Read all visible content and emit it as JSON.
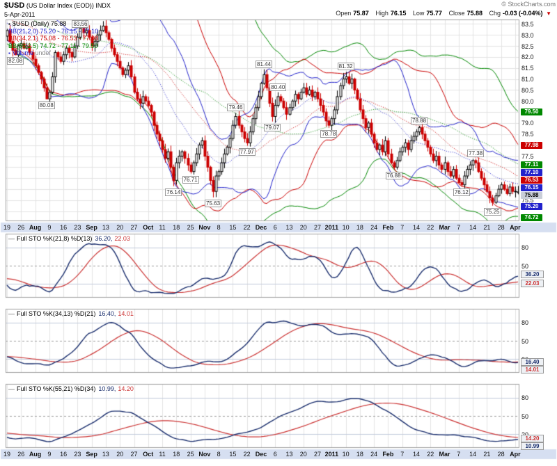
{
  "header": {
    "symbol": "$USD",
    "title_rest": " (US Dollar Index (EOD)) INDX",
    "copyright": "© StockCharts.com",
    "date": "5-Apr-2011",
    "quote": [
      {
        "label": "Open",
        "value": "75.87"
      },
      {
        "label": "High",
        "value": "76.15"
      },
      {
        "label": "Low",
        "value": "75.77"
      },
      {
        "label": "Close",
        "value": "75.88"
      },
      {
        "label": "Chg",
        "value": "-0.03 (-0.04%)"
      }
    ],
    "direction_arrow": "▼"
  },
  "price_panel": {
    "legend": [
      {
        "icon": "▪",
        "icon_name": "candlestick-icon",
        "icon_color": "#000000",
        "text": "$USD (Daily) 75.88",
        "color": "#000000"
      },
      {
        "text": "BB(21,2.0) 75.20 - 76.15 - 77.10",
        "color": "#2222cc"
      },
      {
        "text": "BB(34,2.1) 75.08 - 76.53 - 77.98",
        "color": "#cc0000"
      },
      {
        "text": "BB(55,2.5) 74.72 - 77.11 - 79.50",
        "color": "#008800"
      },
      {
        "icon": "▪",
        "icon_name": "volume-icon",
        "icon_color": "#2222cc",
        "text": "Volume",
        "color": "#2222cc",
        "text2": " undef",
        "color2": "#888888"
      }
    ],
    "y_ticks": [
      "83.5",
      "83.0",
      "82.5",
      "82.0",
      "81.5",
      "81.0",
      "80.5",
      "80.0",
      "79.0",
      "78.5",
      "77.5",
      "75.5"
    ],
    "value_boxes": [
      {
        "text": "79.50",
        "v": 79.5,
        "color": "#008800"
      },
      {
        "text": "77.98",
        "v": 77.98,
        "color": "#cc0000"
      },
      {
        "text": "77.11",
        "v": 77.11,
        "color": "#008800"
      },
      {
        "text": "77.10",
        "v": 77.1,
        "color": "#2222cc"
      },
      {
        "text": "76.53",
        "v": 76.53,
        "color": "#cc0000"
      },
      {
        "text": "76.15",
        "v": 76.15,
        "color": "#2222cc"
      },
      {
        "text": "75.88",
        "v": 75.88,
        "color": "last"
      },
      {
        "text": "75.20",
        "v": 75.2,
        "color": "#2222cc"
      },
      {
        "text": "74.72",
        "v": 74.72,
        "color": "#008800"
      }
    ]
  },
  "stoch_panels": [
    {
      "label": "Full STO %K(21,8) %D(13)",
      "k_text": "36.20,",
      "d_text": "22.03",
      "ticks": [
        "80",
        "50",
        "20"
      ],
      "value_boxes": [
        {
          "text": "36.20",
          "v": 36.2,
          "series": "k"
        },
        {
          "text": "22.03",
          "v": 22.03,
          "series": "d"
        }
      ]
    },
    {
      "label": "Full STO %K(34,13) %D(21)",
      "k_text": "16.40,",
      "d_text": "14.01",
      "ticks": [
        "80",
        "50",
        "20"
      ],
      "value_boxes": [
        {
          "text": "16.40",
          "v": 16.4,
          "series": "k"
        },
        {
          "text": "14.01",
          "v": 14.01,
          "series": "d"
        }
      ]
    },
    {
      "label": "Full STO %K(55,21) %D(34)",
      "k_text": "10.99,",
      "d_text": "14.20",
      "ticks": [
        "80",
        "50",
        "20"
      ],
      "value_boxes": [
        {
          "text": "14.20",
          "v": 14.2,
          "series": "d"
        },
        {
          "text": "10.99",
          "v": 10.99,
          "series": "k"
        }
      ]
    }
  ],
  "chart_data": {
    "type": "candlestick",
    "title": "$USD (US Dollar Index (EOD)) INDX",
    "price_axis_range": [
      74.55,
      83.7
    ],
    "x_axis_weekly_labels": [
      "19",
      "26",
      "Aug",
      "9",
      "16",
      "23",
      "Sep",
      "13",
      "20",
      "27",
      "Oct",
      "11",
      "18",
      "25",
      "Nov",
      "8",
      "15",
      "22",
      "Dec",
      "6",
      "13",
      "20",
      "27",
      "2011",
      "10",
      "18",
      "24",
      "Feb",
      "7",
      "14",
      "22",
      "Mar",
      "7",
      "14",
      "21",
      "28",
      "Apr"
    ],
    "closes": [
      83.2,
      82.7,
      82.3,
      82.1,
      82.5,
      82.6,
      82.4,
      82.5,
      82.2,
      81.9,
      81.6,
      81.3,
      81.0,
      80.6,
      80.1,
      80.4,
      81.1,
      82.2,
      82.0,
      81.8,
      82.1,
      82.4,
      82.2,
      82.0,
      82.5,
      82.9,
      83.3,
      83.1,
      83.2,
      82.9,
      82.5,
      82.7,
      83.0,
      83.2,
      83.4,
      83.1,
      82.8,
      82.4,
      82.1,
      81.8,
      81.5,
      81.2,
      81.4,
      81.6,
      81.1,
      80.4,
      80.1,
      79.9,
      80.2,
      80.0,
      79.8,
      79.5,
      78.9,
      78.5,
      78.2,
      77.8,
      77.4,
      77.7,
      77.0,
      76.4,
      77.2,
      77.5,
      77.7,
      77.4,
      77.1,
      76.8,
      77.2,
      77.6,
      78.0,
      78.2,
      77.5,
      77.0,
      76.4,
      75.9,
      76.6,
      76.8,
      77.2,
      77.6,
      77.9,
      78.3,
      78.9,
      79.3,
      78.9,
      78.6,
      78.3,
      78.1,
      78.6,
      79.2,
      79.7,
      80.2,
      80.8,
      81.2,
      80.6,
      79.9,
      79.3,
      79.8,
      80.2,
      80.0,
      79.7,
      79.4,
      79.7,
      80.0,
      80.3,
      80.1,
      80.4,
      80.6,
      80.3,
      80.5,
      80.2,
      80.4,
      80.1,
      79.8,
      79.5,
      79.1,
      78.9,
      79.2,
      79.6,
      80.2,
      80.7,
      81.0,
      81.1,
      80.8,
      81.0,
      80.5,
      80.1,
      79.6,
      79.2,
      78.8,
      79.0,
      78.5,
      78.1,
      77.8,
      78.0,
      77.7,
      78.2,
      77.6,
      77.2,
      77.0,
      77.3,
      77.7,
      77.9,
      78.1,
      77.8,
      78.2,
      78.4,
      78.6,
      78.8,
      78.5,
      78.2,
      77.9,
      77.6,
      77.3,
      77.5,
      77.1,
      76.9,
      77.2,
      76.8,
      76.6,
      76.9,
      76.5,
      76.3,
      76.2,
      76.6,
      76.9,
      77.1,
      77.3,
      77.2,
      76.8,
      76.5,
      76.2,
      75.9,
      75.6,
      75.4,
      75.7,
      76.0,
      76.2,
      76.0,
      75.8,
      76.1,
      75.9,
      75.91,
      75.88
    ],
    "last_ohlc": {
      "open": 75.87,
      "high": 76.15,
      "low": 75.77,
      "close": 75.88,
      "change": "-0.03 (-0.04%)"
    },
    "overlays": [
      {
        "type": "bollinger",
        "period": 21,
        "stdev": 2.0,
        "color": "#2222cc",
        "last": [
          75.2,
          76.15,
          77.1
        ]
      },
      {
        "type": "bollinger",
        "period": 34,
        "stdev": 2.1,
        "color": "#cc0000",
        "last": [
          75.08,
          76.53,
          77.98
        ]
      },
      {
        "type": "bollinger",
        "period": 55,
        "stdev": 2.5,
        "color": "#008800",
        "last": [
          74.72,
          77.11,
          79.5
        ]
      }
    ],
    "annotations": [
      {
        "day": 3,
        "v": 82.08,
        "text": "82.08",
        "pos": "low"
      },
      {
        "day": 14,
        "v": 80.08,
        "text": "80.08",
        "pos": "low"
      },
      {
        "day": 26,
        "v": 83.56,
        "text": "83.56",
        "pos": "high"
      },
      {
        "day": 59,
        "v": 76.14,
        "text": "76.14",
        "pos": "low"
      },
      {
        "day": 65,
        "v": 76.71,
        "text": "76.71",
        "pos": "low"
      },
      {
        "day": 73,
        "v": 75.63,
        "text": "75.63",
        "pos": "low"
      },
      {
        "day": 81,
        "v": 79.46,
        "text": "79.46",
        "pos": "high"
      },
      {
        "day": 85,
        "v": 77.97,
        "text": "77.97",
        "pos": "low"
      },
      {
        "day": 91,
        "v": 81.44,
        "text": "81.44",
        "pos": "high"
      },
      {
        "day": 94,
        "v": 79.07,
        "text": "79.07",
        "pos": "low"
      },
      {
        "day": 96,
        "v": 80.4,
        "text": "80.40",
        "pos": "high"
      },
      {
        "day": 114,
        "v": 78.78,
        "text": "78.78",
        "pos": "low"
      },
      {
        "day": 120,
        "v": 81.32,
        "text": "81.32",
        "pos": "high"
      },
      {
        "day": 137,
        "v": 76.88,
        "text": "76.88",
        "pos": "low"
      },
      {
        "day": 146,
        "v": 78.88,
        "text": "78.88",
        "pos": "high"
      },
      {
        "day": 161,
        "v": 76.12,
        "text": "76.12",
        "pos": "low"
      },
      {
        "day": 166,
        "v": 77.38,
        "text": "77.38",
        "pos": "high"
      },
      {
        "day": 172,
        "v": 75.25,
        "text": "75.25",
        "pos": "low"
      }
    ],
    "indicators": [
      {
        "type": "full_stochastic",
        "k_period": 21,
        "k_smooth": 8,
        "d_period": 13,
        "last_k": 36.2,
        "last_d": 22.03
      },
      {
        "type": "full_stochastic",
        "k_period": 34,
        "k_smooth": 13,
        "d_period": 21,
        "last_k": 16.4,
        "last_d": 14.01
      },
      {
        "type": "full_stochastic",
        "k_period": 55,
        "k_smooth": 21,
        "d_period": 34,
        "last_k": 10.99,
        "last_d": 14.2
      }
    ]
  }
}
